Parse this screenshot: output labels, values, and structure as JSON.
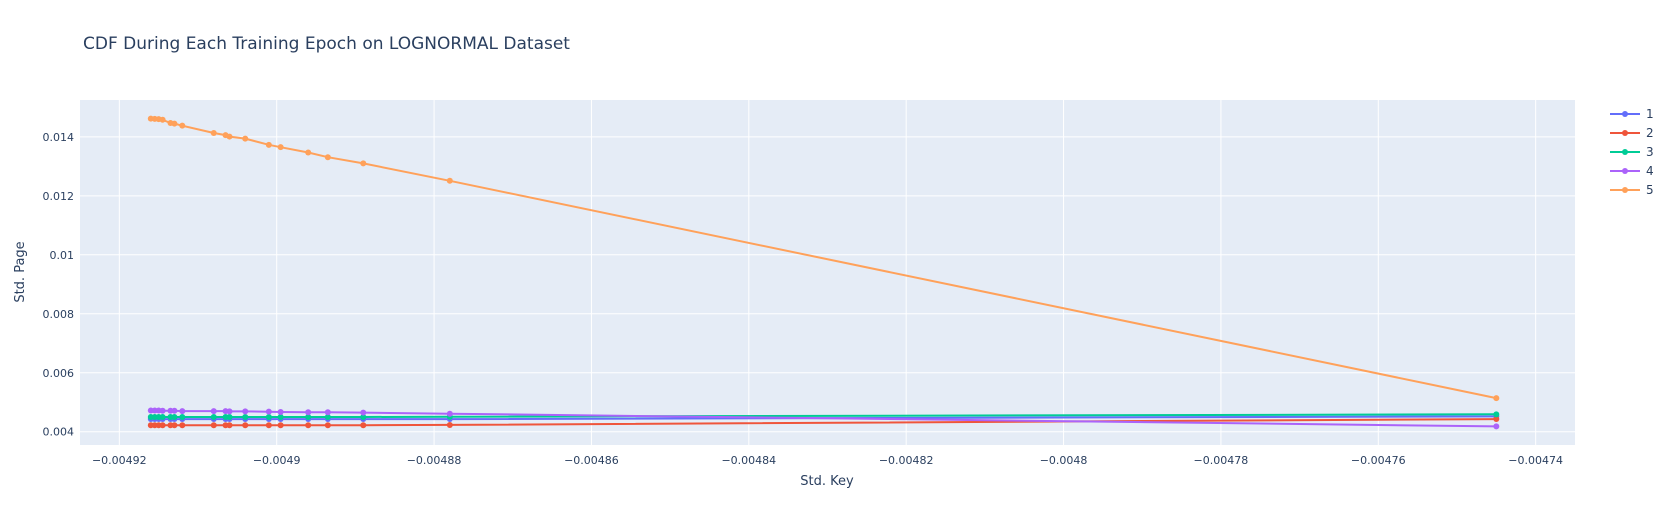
{
  "chart_data": {
    "type": "line",
    "title": "CDF During Each Training Epoch on LOGNORMAL Dataset",
    "xlabel": "Std. Key",
    "ylabel": "Std. Page",
    "xlim": [
      -0.004925,
      -0.004735
    ],
    "ylim": [
      0.00355,
      0.01525
    ],
    "x_ticks": [
      -0.00492,
      -0.0049,
      -0.00488,
      -0.00486,
      -0.00484,
      -0.00482,
      -0.0048,
      -0.00478,
      -0.00476,
      -0.00474
    ],
    "x_tick_labels": [
      "−0.00492",
      "−0.0049",
      "−0.00488",
      "−0.00486",
      "−0.00484",
      "−0.00482",
      "−0.0048",
      "−0.00478",
      "−0.00476",
      "−0.00474"
    ],
    "y_ticks": [
      0.004,
      0.006,
      0.008,
      0.01,
      0.012,
      0.014
    ],
    "y_tick_labels": [
      "0.004",
      "0.006",
      "0.008",
      "0.01",
      "0.012",
      "0.014"
    ],
    "grid": true,
    "legend_position": "top-right",
    "x": [
      -0.004916,
      -0.0049155,
      -0.004915,
      -0.0049145,
      -0.0049135,
      -0.004913,
      -0.004912,
      -0.004908,
      -0.0049065,
      -0.004906,
      -0.004904,
      -0.004901,
      -0.0048995,
      -0.004896,
      -0.0048935,
      -0.004889,
      -0.004878,
      -0.004745
    ],
    "series": [
      {
        "name": "1",
        "color": "#636efa",
        "values": [
          0.00443,
          0.00443,
          0.00443,
          0.00443,
          0.00443,
          0.00443,
          0.00443,
          0.00443,
          0.00443,
          0.00443,
          0.00443,
          0.00443,
          0.00443,
          0.00443,
          0.00443,
          0.00443,
          0.00443,
          0.00452
        ]
      },
      {
        "name": "2",
        "color": "#ef553b",
        "values": [
          0.00422,
          0.00422,
          0.00422,
          0.00422,
          0.00422,
          0.00422,
          0.00422,
          0.00422,
          0.00422,
          0.00422,
          0.00422,
          0.00422,
          0.00422,
          0.00422,
          0.00422,
          0.00422,
          0.00423,
          0.00443
        ]
      },
      {
        "name": "3",
        "color": "#00cc96",
        "values": [
          0.0045,
          0.0045,
          0.0045,
          0.0045,
          0.0045,
          0.0045,
          0.0045,
          0.0045,
          0.0045,
          0.0045,
          0.0045,
          0.0045,
          0.0045,
          0.0045,
          0.0045,
          0.0045,
          0.00451,
          0.00459
        ]
      },
      {
        "name": "4",
        "color": "#ab63fa",
        "values": [
          0.00472,
          0.00472,
          0.00472,
          0.00471,
          0.00471,
          0.00471,
          0.0047,
          0.0047,
          0.0047,
          0.00469,
          0.00469,
          0.00468,
          0.00467,
          0.00466,
          0.00466,
          0.00465,
          0.00461,
          0.00418
        ]
      },
      {
        "name": "5",
        "color": "#ffa15a",
        "values": [
          0.01462,
          0.01461,
          0.0146,
          0.01458,
          0.01447,
          0.01445,
          0.01438,
          0.01413,
          0.01406,
          0.01401,
          0.01394,
          0.01373,
          0.01365,
          0.01347,
          0.01331,
          0.0131,
          0.01251,
          0.00514
        ]
      }
    ]
  }
}
